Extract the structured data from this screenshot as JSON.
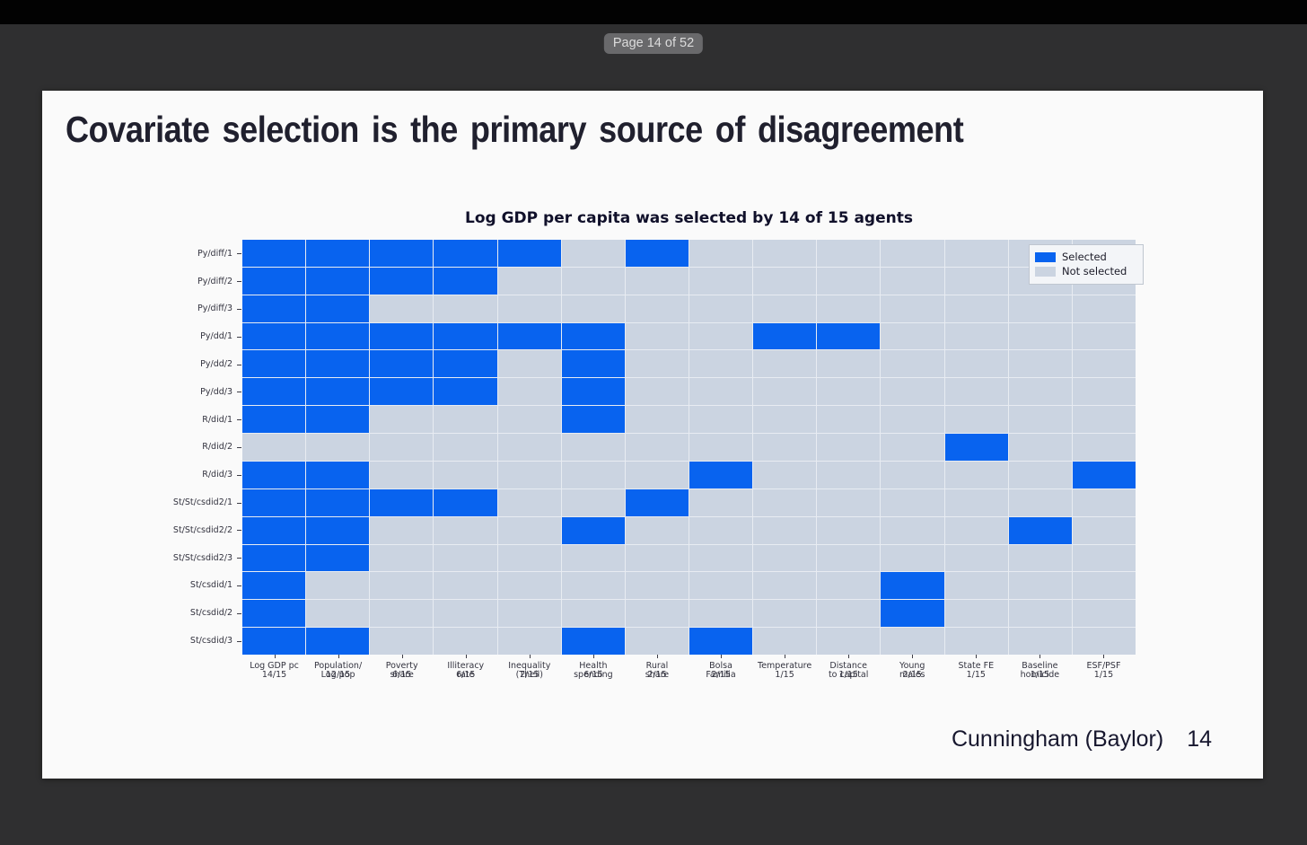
{
  "viewer": {
    "page_indicator": "Page 14 of 52"
  },
  "slide": {
    "title": "Covariate selection is the primary source of disagreement",
    "footer_author": "Cunningham (Baylor)",
    "footer_page": "14"
  },
  "chart_data": {
    "type": "heatmap",
    "title": "Log GDP per capita was selected by 14 of 15 agents",
    "legend_position": "upper right",
    "grid": false,
    "legend": [
      {
        "label": "Selected",
        "color": "#0863ef"
      },
      {
        "label": "Not selected",
        "color": "#cbd4e1"
      }
    ],
    "rows": [
      "Py/diff/1",
      "Py/diff/2",
      "Py/diff/3",
      "Py/dd/1",
      "Py/dd/2",
      "Py/dd/3",
      "R/did/1",
      "R/did/2",
      "R/did/3",
      "St/St/csdid2/1",
      "St/St/csdid2/2",
      "St/St/csdid2/3",
      "St/csdid/1",
      "St/csdid/2",
      "St/csdid/3"
    ],
    "columns": [
      {
        "lines": [
          "Log GDP pc"
        ],
        "fraction": "14/15"
      },
      {
        "lines": [
          "Population/",
          "Log pop"
        ],
        "fraction": "12/15"
      },
      {
        "lines": [
          "Poverty",
          "share"
        ],
        "fraction": "6/15"
      },
      {
        "lines": [
          "Illiteracy",
          "rate"
        ],
        "fraction": "6/15"
      },
      {
        "lines": [
          "Inequality",
          "(Theil)"
        ],
        "fraction": "2/15"
      },
      {
        "lines": [
          "Health",
          "spending"
        ],
        "fraction": "6/15"
      },
      {
        "lines": [
          "Rural",
          "share"
        ],
        "fraction": "2/15"
      },
      {
        "lines": [
          "Bolsa",
          "Familia"
        ],
        "fraction": "2/15"
      },
      {
        "lines": [
          "Temperature"
        ],
        "fraction": "1/15"
      },
      {
        "lines": [
          "Distance",
          "to capital"
        ],
        "fraction": "1/15"
      },
      {
        "lines": [
          "Young",
          "males"
        ],
        "fraction": "2/15"
      },
      {
        "lines": [
          "State FE"
        ],
        "fraction": "1/15"
      },
      {
        "lines": [
          "Baseline",
          "homicide"
        ],
        "fraction": "1/15"
      },
      {
        "lines": [
          "ESF/PSF"
        ],
        "fraction": "1/15"
      }
    ],
    "cell_values": {
      "1": "Selected",
      "0": "Not selected"
    },
    "matrix": [
      [
        1,
        1,
        1,
        1,
        1,
        0,
        1,
        0,
        0,
        0,
        0,
        0,
        0,
        0
      ],
      [
        1,
        1,
        1,
        1,
        0,
        0,
        0,
        0,
        0,
        0,
        0,
        0,
        0,
        0
      ],
      [
        1,
        1,
        0,
        0,
        0,
        0,
        0,
        0,
        0,
        0,
        0,
        0,
        0,
        0
      ],
      [
        1,
        1,
        1,
        1,
        1,
        1,
        0,
        0,
        1,
        1,
        0,
        0,
        0,
        0
      ],
      [
        1,
        1,
        1,
        1,
        0,
        1,
        0,
        0,
        0,
        0,
        0,
        0,
        0,
        0
      ],
      [
        1,
        1,
        1,
        1,
        0,
        1,
        0,
        0,
        0,
        0,
        0,
        0,
        0,
        0
      ],
      [
        1,
        1,
        0,
        0,
        0,
        1,
        0,
        0,
        0,
        0,
        0,
        0,
        0,
        0
      ],
      [
        0,
        0,
        0,
        0,
        0,
        0,
        0,
        0,
        0,
        0,
        0,
        1,
        0,
        0
      ],
      [
        1,
        1,
        0,
        0,
        0,
        0,
        0,
        1,
        0,
        0,
        0,
        0,
        0,
        1
      ],
      [
        1,
        1,
        1,
        1,
        0,
        0,
        1,
        0,
        0,
        0,
        0,
        0,
        0,
        0
      ],
      [
        1,
        1,
        0,
        0,
        0,
        1,
        0,
        0,
        0,
        0,
        0,
        0,
        1,
        0
      ],
      [
        1,
        1,
        0,
        0,
        0,
        0,
        0,
        0,
        0,
        0,
        0,
        0,
        0,
        0
      ],
      [
        1,
        0,
        0,
        0,
        0,
        0,
        0,
        0,
        0,
        0,
        1,
        0,
        0,
        0
      ],
      [
        1,
        0,
        0,
        0,
        0,
        0,
        0,
        0,
        0,
        0,
        1,
        0,
        0,
        0
      ],
      [
        1,
        1,
        0,
        0,
        0,
        1,
        0,
        1,
        0,
        0,
        0,
        0,
        0,
        0
      ]
    ]
  }
}
